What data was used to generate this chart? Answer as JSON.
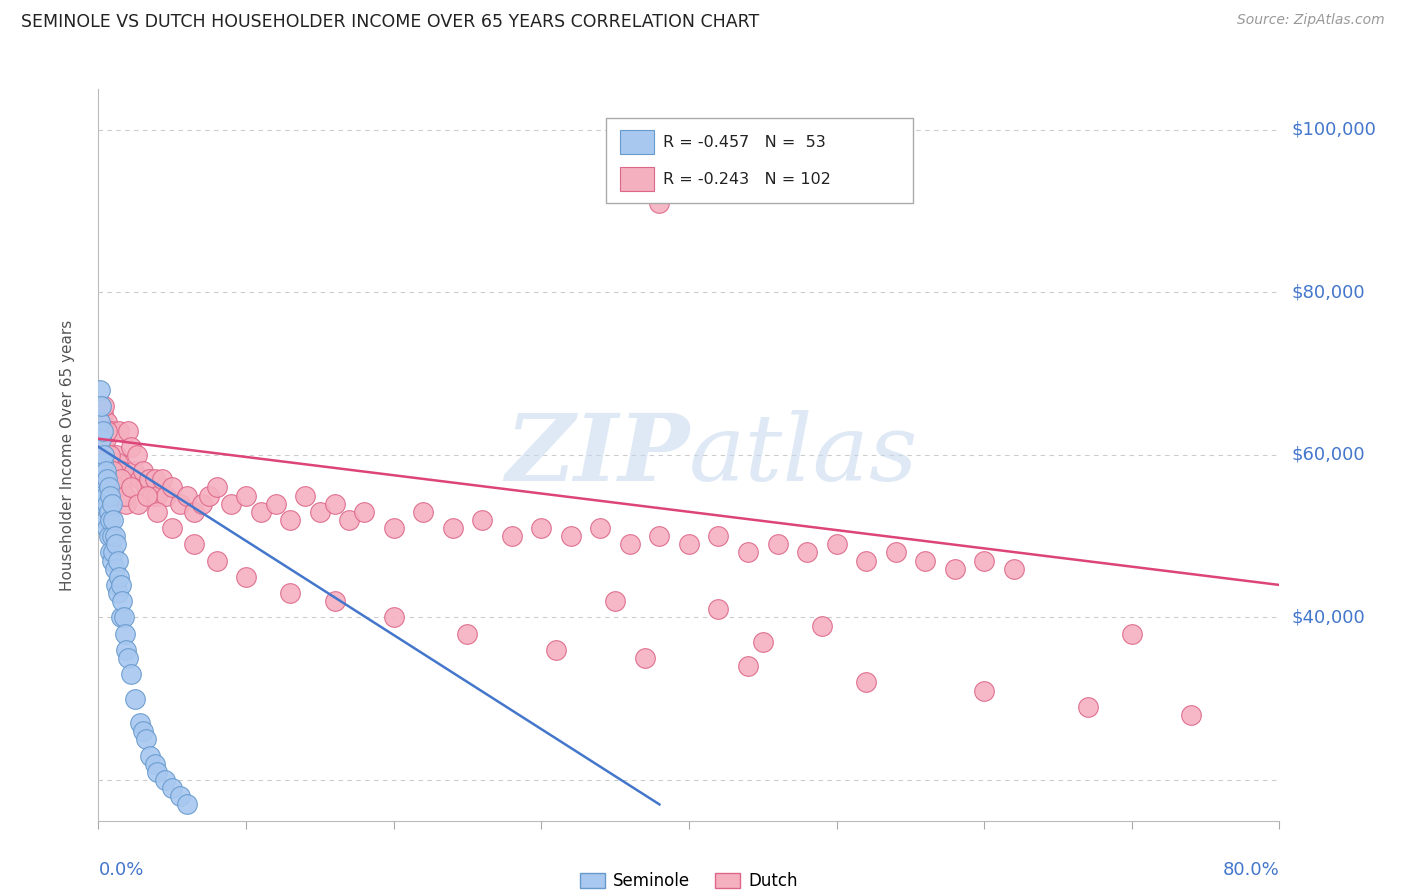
{
  "title": "SEMINOLE VS DUTCH HOUSEHOLDER INCOME OVER 65 YEARS CORRELATION CHART",
  "source": "Source: ZipAtlas.com",
  "ylabel": "Householder Income Over 65 years",
  "seminole_color": "#a8c8f0",
  "dutch_color": "#f5b0c0",
  "seminole_edge_color": "#6699cc",
  "dutch_edge_color": "#dd6688",
  "seminole_line_color": "#4477cc",
  "dutch_line_color": "#dd4477",
  "watermark_color": "#c8ddf5",
  "legend_seminole_R": "R = -0.457",
  "legend_seminole_N": "N =  53",
  "legend_dutch_R": "R = -0.243",
  "legend_dutch_N": "N = 102",
  "xlim": [
    0.0,
    0.8
  ],
  "ylim": [
    15000,
    105000
  ],
  "background_color": "#ffffff",
  "grid_color": "#cccccc",
  "seminole_line_x0": 0.0,
  "seminole_line_y0": 61000,
  "seminole_line_x1": 0.38,
  "seminole_line_y1": 17000,
  "dutch_line_x0": 0.0,
  "dutch_line_y0": 62000,
  "dutch_line_x1": 0.8,
  "dutch_line_y1": 44000,
  "seminole_x": [
    0.001,
    0.001,
    0.002,
    0.002,
    0.003,
    0.003,
    0.003,
    0.004,
    0.004,
    0.004,
    0.005,
    0.005,
    0.005,
    0.006,
    0.006,
    0.006,
    0.007,
    0.007,
    0.007,
    0.008,
    0.008,
    0.008,
    0.009,
    0.009,
    0.009,
    0.01,
    0.01,
    0.011,
    0.011,
    0.012,
    0.012,
    0.013,
    0.013,
    0.014,
    0.015,
    0.015,
    0.016,
    0.017,
    0.018,
    0.019,
    0.02,
    0.022,
    0.025,
    0.028,
    0.03,
    0.032,
    0.035,
    0.038,
    0.04,
    0.045,
    0.05,
    0.055,
    0.06
  ],
  "seminole_y": [
    68000,
    64000,
    66000,
    62000,
    63000,
    59000,
    56000,
    60000,
    57000,
    54000,
    58000,
    55000,
    52000,
    57000,
    54000,
    51000,
    56000,
    53000,
    50000,
    55000,
    52000,
    48000,
    54000,
    50000,
    47000,
    52000,
    48000,
    50000,
    46000,
    49000,
    44000,
    47000,
    43000,
    45000,
    44000,
    40000,
    42000,
    40000,
    38000,
    36000,
    35000,
    33000,
    30000,
    27000,
    26000,
    25000,
    23000,
    22000,
    21000,
    20000,
    19000,
    18000,
    17000
  ],
  "dutch_x": [
    0.002,
    0.003,
    0.004,
    0.005,
    0.006,
    0.007,
    0.008,
    0.009,
    0.01,
    0.011,
    0.012,
    0.013,
    0.014,
    0.015,
    0.016,
    0.017,
    0.018,
    0.019,
    0.02,
    0.022,
    0.024,
    0.026,
    0.028,
    0.03,
    0.032,
    0.034,
    0.036,
    0.038,
    0.04,
    0.043,
    0.046,
    0.05,
    0.055,
    0.06,
    0.065,
    0.07,
    0.075,
    0.08,
    0.09,
    0.1,
    0.11,
    0.12,
    0.13,
    0.14,
    0.15,
    0.16,
    0.17,
    0.18,
    0.2,
    0.22,
    0.24,
    0.26,
    0.28,
    0.3,
    0.32,
    0.34,
    0.36,
    0.38,
    0.4,
    0.42,
    0.44,
    0.46,
    0.48,
    0.5,
    0.52,
    0.54,
    0.56,
    0.58,
    0.6,
    0.62,
    0.004,
    0.006,
    0.008,
    0.01,
    0.012,
    0.015,
    0.018,
    0.022,
    0.027,
    0.033,
    0.04,
    0.05,
    0.065,
    0.08,
    0.1,
    0.13,
    0.16,
    0.2,
    0.25,
    0.31,
    0.37,
    0.44,
    0.52,
    0.6,
    0.67,
    0.74,
    0.35,
    0.42,
    0.49,
    0.45,
    0.38,
    0.7
  ],
  "dutch_y": [
    63000,
    65000,
    61000,
    62000,
    64000,
    60000,
    59000,
    63000,
    58000,
    57000,
    60000,
    59000,
    63000,
    56000,
    58000,
    55000,
    57000,
    54000,
    63000,
    61000,
    58000,
    60000,
    57000,
    58000,
    56000,
    57000,
    55000,
    57000,
    55000,
    57000,
    55000,
    56000,
    54000,
    55000,
    53000,
    54000,
    55000,
    56000,
    54000,
    55000,
    53000,
    54000,
    52000,
    55000,
    53000,
    54000,
    52000,
    53000,
    51000,
    53000,
    51000,
    52000,
    50000,
    51000,
    50000,
    51000,
    49000,
    50000,
    49000,
    50000,
    48000,
    49000,
    48000,
    49000,
    47000,
    48000,
    47000,
    46000,
    47000,
    46000,
    66000,
    63000,
    60000,
    58000,
    56000,
    57000,
    55000,
    56000,
    54000,
    55000,
    53000,
    51000,
    49000,
    47000,
    45000,
    43000,
    42000,
    40000,
    38000,
    36000,
    35000,
    34000,
    32000,
    31000,
    29000,
    28000,
    42000,
    41000,
    39000,
    37000,
    91000,
    38000
  ]
}
